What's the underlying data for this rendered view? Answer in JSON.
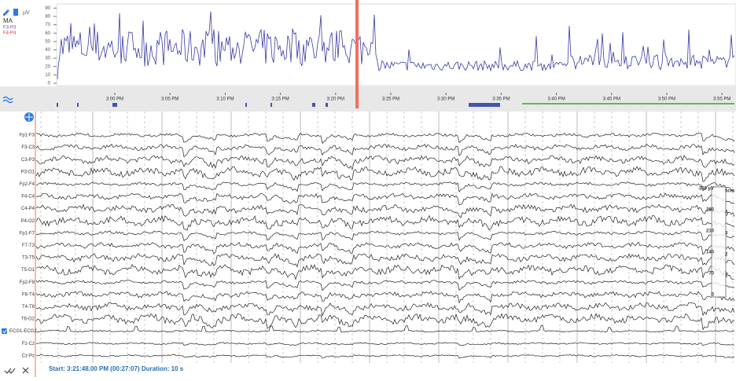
{
  "trend": {
    "unit": "µV",
    "title": "MA",
    "channels": [
      "F3-P3",
      "F4-P4"
    ],
    "ylim": [
      0,
      95
    ],
    "yticks": [
      0,
      10,
      20,
      30,
      40,
      50,
      60,
      70,
      80,
      90
    ]
  },
  "timeline": {
    "labels": [
      "3:00 PM",
      "3:05 PM",
      "3:10 PM",
      "3:15 PM",
      "3:20 PM",
      "3:25 PM",
      "3:30 PM",
      "3:35 PM",
      "3:40 PM",
      "3:45 PM",
      "3:50 PM",
      "3:55 PM"
    ]
  },
  "montage": {
    "channels": [
      "Fp1-F3",
      "F3-C3",
      "C3-P3",
      "P3-O1",
      "Fp2-F4",
      "F4-C4",
      "C4-P4",
      "P4-O2",
      "Fp1-F7",
      "F7-T3",
      "T3-T5",
      "T5-O1",
      "Fp2-F8",
      "F8-T4",
      "T4-T6",
      "T6-O2",
      "ECG1-ECG2",
      "Fz-Cz",
      "Cz-Pz"
    ]
  },
  "scale": {
    "amplitude": [
      "350 µV",
      "280",
      "210",
      "140",
      "70",
      "0"
    ],
    "length": [
      "5cm",
      "4",
      "3",
      "2",
      "1"
    ]
  },
  "status": "Start: 3:21:48.00 PM (00:27:07) Duration: 10 s"
}
